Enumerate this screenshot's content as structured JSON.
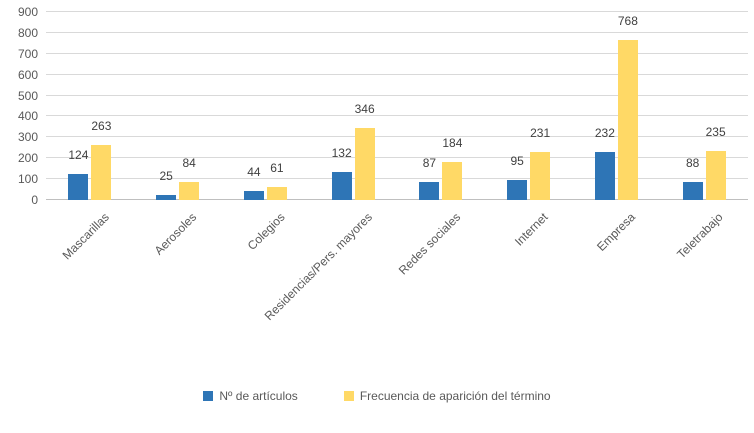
{
  "chart_data": {
    "type": "bar",
    "title": "",
    "xlabel": "",
    "ylabel": "",
    "categories": [
      "Mascarillas",
      "Aerosoles",
      "Colegios",
      "Residencias/Pers. mayores",
      "Redes sociales",
      "Internet",
      "Empresa",
      "Teletrabajo"
    ],
    "series": [
      {
        "name": "Nº de artículos",
        "color": "#2E75B6",
        "values": [
          124,
          25,
          44,
          132,
          87,
          95,
          232,
          88
        ]
      },
      {
        "name": "Frecuencia de aparición del término",
        "color": "#FFD966",
        "values": [
          263,
          84,
          61,
          346,
          184,
          231,
          768,
          235
        ]
      }
    ],
    "ylim": [
      0,
      900
    ],
    "ytick_step": 100,
    "yticks": [
      0,
      100,
      200,
      300,
      400,
      500,
      600,
      700,
      800,
      900
    ],
    "grid": true,
    "legend_position": "bottom",
    "data_labels": true
  },
  "colors": {
    "axis_text": "#595959",
    "data_label_text": "#404040",
    "gridline": "#D9D9D9",
    "axis_line": "#BFBFBF",
    "background": "#FFFFFF"
  }
}
